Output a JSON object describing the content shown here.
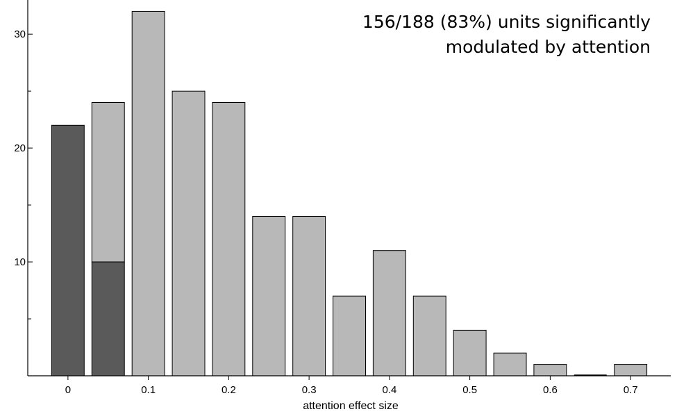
{
  "chart_data": {
    "type": "bar",
    "stacked": true,
    "x": [
      0,
      0.05,
      0.1,
      0.15,
      0.2,
      0.25,
      0.3,
      0.35,
      0.4,
      0.45,
      0.5,
      0.55,
      0.6,
      0.65,
      0.7
    ],
    "series": [
      {
        "values": [
          22,
          10,
          0,
          0,
          0,
          0,
          0,
          0,
          0,
          0,
          0,
          0,
          0,
          0,
          0
        ],
        "color": "#5a5a5a"
      },
      {
        "values": [
          0,
          14,
          32,
          25,
          24,
          14,
          14,
          7,
          11,
          7,
          4,
          2,
          1,
          0,
          1
        ],
        "color": "#b8b8b8"
      }
    ],
    "xticks": [
      "0",
      "0.1",
      "0.2",
      "0.3",
      "0.4",
      "0.5",
      "0.6",
      "0.7"
    ],
    "xtick_values": [
      0,
      0.1,
      0.2,
      0.3,
      0.4,
      0.5,
      0.6,
      0.7
    ],
    "yticks": [
      "10",
      "20",
      "30"
    ],
    "ytick_values": [
      10,
      20,
      30
    ],
    "yminor_ticks": [
      5,
      15,
      25
    ],
    "xlabel": "attention effect size",
    "ylabel": "",
    "xlim": [
      -0.05,
      0.75
    ],
    "ylim": [
      0,
      33
    ],
    "grid": false,
    "annotation": [
      "156/188 (83%) units significantly",
      "modulated by attention"
    ]
  }
}
